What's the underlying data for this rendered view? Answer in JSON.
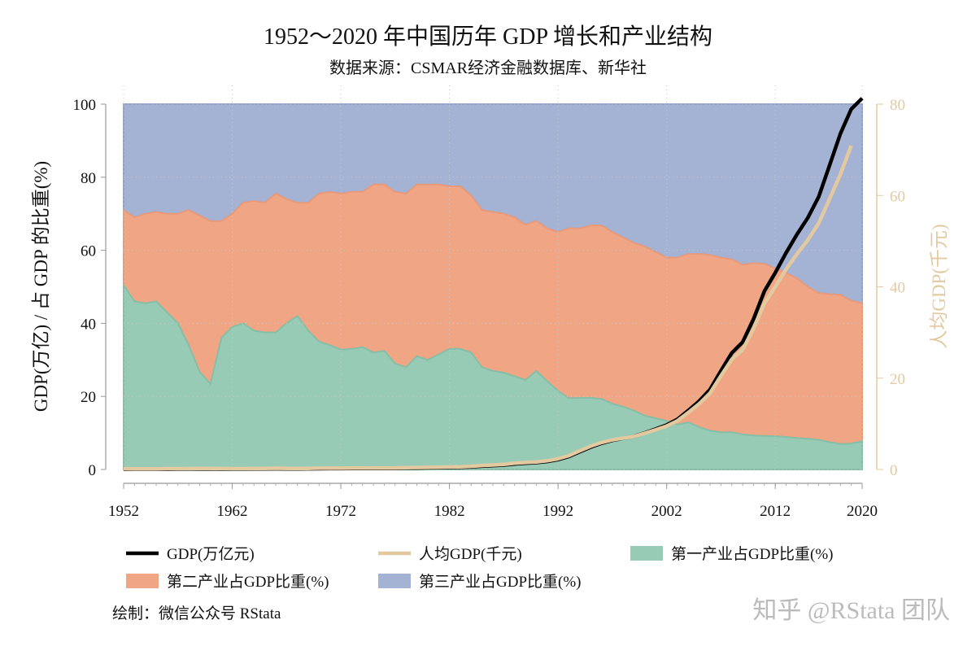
{
  "chart_data": {
    "type": "area",
    "title": "1952～2020 年中国历年 GDP 增长和产业结构",
    "subtitle": "数据来源：CSMAR经济金融数据库、新华社",
    "ylabel": "GDP(万亿) / 占 GDP 的比重(%)",
    "ylabel_right": "人均GDP(千元)",
    "ylim": [
      0,
      100
    ],
    "ylim_right": [
      0,
      80
    ],
    "xlim": [
      1952,
      2020
    ],
    "x_ticks": [
      1952,
      1962,
      1972,
      1982,
      1992,
      2002,
      2012,
      2020
    ],
    "y_ticks": [
      0,
      20,
      40,
      60,
      80,
      100
    ],
    "y_ticks_right": [
      0,
      20,
      40,
      60,
      80
    ],
    "grid": true,
    "legend_placement": "bottom",
    "footer": "绘制：微信公众号 RStata",
    "watermark": "知乎 @RStata 团队",
    "colors": {
      "gdp": "#000000",
      "per_capita": "#e3c9a0",
      "primary": "#97cbb6",
      "secondary": "#f0a684",
      "tertiary": "#a4b2d3",
      "right_axis": "#e3c9a0"
    },
    "years": [
      1952,
      1953,
      1954,
      1955,
      1956,
      1957,
      1958,
      1959,
      1960,
      1961,
      1962,
      1963,
      1964,
      1965,
      1966,
      1967,
      1968,
      1969,
      1970,
      1971,
      1972,
      1973,
      1974,
      1975,
      1976,
      1977,
      1978,
      1979,
      1980,
      1981,
      1982,
      1983,
      1984,
      1985,
      1986,
      1987,
      1988,
      1989,
      1990,
      1991,
      1992,
      1993,
      1994,
      1995,
      1996,
      1997,
      1998,
      1999,
      2000,
      2001,
      2002,
      2003,
      2004,
      2005,
      2006,
      2007,
      2008,
      2009,
      2010,
      2011,
      2012,
      2013,
      2014,
      2015,
      2016,
      2017,
      2018,
      2019,
      2020
    ],
    "series": [
      {
        "key": "gdp",
        "name": "GDP(万亿元)",
        "kind": "line",
        "axis": "left",
        "values": [
          0.07,
          0.08,
          0.08,
          0.09,
          0.1,
          0.11,
          0.13,
          0.14,
          0.15,
          0.12,
          0.11,
          0.12,
          0.15,
          0.17,
          0.19,
          0.18,
          0.17,
          0.19,
          0.23,
          0.24,
          0.25,
          0.27,
          0.28,
          0.3,
          0.29,
          0.32,
          0.37,
          0.41,
          0.46,
          0.49,
          0.54,
          0.6,
          0.72,
          0.91,
          1.04,
          1.22,
          1.52,
          1.72,
          1.89,
          2.2,
          2.72,
          3.57,
          4.86,
          6.13,
          7.18,
          7.97,
          8.52,
          9.06,
          10.03,
          11.09,
          12.17,
          13.74,
          16.18,
          18.73,
          21.94,
          27.0,
          31.92,
          34.85,
          41.21,
          48.79,
          53.86,
          59.3,
          64.36,
          68.89,
          74.64,
          83.2,
          91.93,
          98.65,
          101.6
        ]
      },
      {
        "key": "per_capita",
        "name": "人均GDP(千元)",
        "kind": "line",
        "axis": "right",
        "values": [
          0.12,
          0.14,
          0.14,
          0.15,
          0.17,
          0.17,
          0.2,
          0.22,
          0.22,
          0.19,
          0.17,
          0.18,
          0.21,
          0.24,
          0.26,
          0.24,
          0.22,
          0.24,
          0.28,
          0.29,
          0.29,
          0.31,
          0.31,
          0.33,
          0.32,
          0.34,
          0.39,
          0.42,
          0.47,
          0.49,
          0.53,
          0.59,
          0.7,
          0.87,
          0.98,
          1.13,
          1.38,
          1.54,
          1.66,
          1.91,
          2.33,
          3.03,
          4.08,
          5.09,
          5.9,
          6.48,
          6.86,
          7.23,
          7.94,
          8.72,
          9.51,
          10.67,
          12.49,
          14.37,
          16.74,
          20.49,
          24.12,
          26.22,
          30.88,
          36.4,
          40.01,
          43.85,
          47.2,
          50.25,
          53.94,
          59.2,
          64.64,
          70.89,
          null
        ]
      },
      {
        "key": "primary",
        "name": "第一产业占GDP比重(%)",
        "kind": "area",
        "axis": "left",
        "values": [
          50.5,
          46,
          45.5,
          46,
          43,
          40,
          34,
          26.7,
          23.4,
          36,
          39,
          40,
          38,
          37.5,
          37.5,
          40,
          42,
          38,
          35,
          34,
          32.8,
          33,
          33.5,
          32,
          32.5,
          29,
          28,
          31,
          30,
          31.5,
          33,
          33,
          32,
          28,
          27,
          26.5,
          25.5,
          24.5,
          27,
          24.2,
          21.5,
          19.5,
          19.6,
          19.6,
          19.3,
          18,
          17.2,
          16.1,
          14.7,
          14,
          13.3,
          12.3,
          12.9,
          11.6,
          10.6,
          10.2,
          10.2,
          9.6,
          9.3,
          9.2,
          9.1,
          8.9,
          8.6,
          8.4,
          8.1,
          7.5,
          7.0,
          7.1,
          7.7
        ]
      },
      {
        "key": "secondary",
        "name": "第二产业占GDP比重(%)",
        "kind": "area",
        "axis": "left",
        "values": [
          20.5,
          23,
          24.5,
          24.5,
          27,
          30,
          37,
          42.8,
          44.6,
          32,
          31,
          33,
          35.5,
          35.5,
          38,
          34,
          31,
          35,
          40.5,
          42,
          42.7,
          43,
          42.5,
          46,
          45.5,
          47,
          47.5,
          47,
          48,
          46.5,
          44.5,
          44.5,
          43,
          43,
          43.5,
          43.5,
          43.5,
          42.5,
          41,
          41.8,
          43.5,
          46.5,
          46.4,
          47.2,
          47.5,
          47,
          46.3,
          45.9,
          46.3,
          45.5,
          44.7,
          45.7,
          46.1,
          47.4,
          48.1,
          47.8,
          47.3,
          46.4,
          47.2,
          47.1,
          45.9,
          44.9,
          43.7,
          41.6,
          40.2,
          40.5,
          40.8,
          39.1,
          37.8
        ]
      },
      {
        "key": "tertiary",
        "name": "第三产业占GDP比重(%)",
        "kind": "area",
        "axis": "left",
        "values": [
          29,
          31,
          30,
          29.5,
          30,
          30,
          29,
          30.5,
          32,
          32,
          30,
          27,
          26.5,
          27,
          24.5,
          26,
          27,
          27,
          24.5,
          24,
          24.5,
          24,
          24,
          22,
          22,
          24,
          24.5,
          22,
          22,
          22,
          22.5,
          22.5,
          25,
          29,
          29.5,
          30,
          31,
          33,
          32,
          34,
          35,
          34,
          34,
          33.2,
          33.2,
          35,
          36.5,
          38,
          39,
          40.5,
          42,
          42,
          41,
          41,
          41.3,
          42,
          42.5,
          44,
          43.5,
          43.7,
          45,
          46.2,
          47.7,
          50,
          51.7,
          52,
          52.2,
          53.8,
          54.5
        ]
      }
    ]
  }
}
